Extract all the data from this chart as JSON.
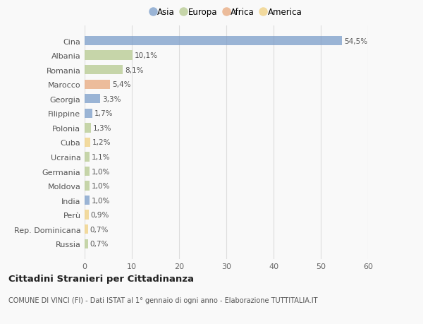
{
  "countries": [
    "Cina",
    "Albania",
    "Romania",
    "Marocco",
    "Georgia",
    "Filippine",
    "Polonia",
    "Cuba",
    "Ucraina",
    "Germania",
    "Moldova",
    "India",
    "Perù",
    "Rep. Dominicana",
    "Russia"
  ],
  "values": [
    54.5,
    10.1,
    8.1,
    5.4,
    3.3,
    1.7,
    1.3,
    1.2,
    1.1,
    1.0,
    1.0,
    1.0,
    0.9,
    0.7,
    0.7
  ],
  "labels": [
    "54,5%",
    "10,1%",
    "8,1%",
    "5,4%",
    "3,3%",
    "1,7%",
    "1,3%",
    "1,2%",
    "1,1%",
    "1,0%",
    "1,0%",
    "1,0%",
    "0,9%",
    "0,7%",
    "0,7%"
  ],
  "continents": [
    "Asia",
    "Europa",
    "Europa",
    "Africa",
    "Asia",
    "Asia",
    "Europa",
    "America",
    "Europa",
    "Europa",
    "Europa",
    "Asia",
    "America",
    "America",
    "Europa"
  ],
  "continent_colors": {
    "Asia": "#7b9dc9",
    "Europa": "#b5c98e",
    "Africa": "#e8a87c",
    "America": "#f0d080"
  },
  "legend_order": [
    "Asia",
    "Europa",
    "Africa",
    "America"
  ],
  "title": "Cittadini Stranieri per Cittadinanza",
  "subtitle": "COMUNE DI VINCI (FI) - Dati ISTAT al 1° gennaio di ogni anno - Elaborazione TUTTITALIA.IT",
  "xlim": [
    0,
    60
  ],
  "xticks": [
    0,
    10,
    20,
    30,
    40,
    50,
    60
  ],
  "background_color": "#f9f9f9",
  "bar_alpha": 0.75,
  "grid_color": "#dddddd"
}
